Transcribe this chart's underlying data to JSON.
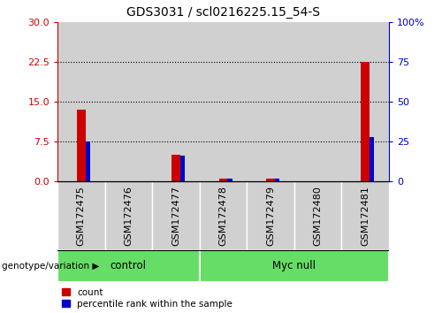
{
  "title": "GDS3031 / scl0216225.15_54-S",
  "samples": [
    "GSM172475",
    "GSM172476",
    "GSM172477",
    "GSM172478",
    "GSM172479",
    "GSM172480",
    "GSM172481"
  ],
  "red_values": [
    13.5,
    0.0,
    5.0,
    0.5,
    0.5,
    0.0,
    22.5
  ],
  "blue_values_pct": [
    25.0,
    0.0,
    16.0,
    2.0,
    2.0,
    0.0,
    28.0
  ],
  "ylim_left": [
    0,
    30
  ],
  "ylim_right": [
    0,
    100
  ],
  "yticks_left": [
    0,
    7.5,
    15,
    22.5,
    30
  ],
  "yticks_right": [
    0,
    25,
    50,
    75,
    100
  ],
  "ytick_labels_right": [
    "0",
    "25",
    "50",
    "75",
    "100%"
  ],
  "groups": [
    {
      "label": "control",
      "start": 0,
      "end": 3
    },
    {
      "label": "Myc null",
      "start": 3,
      "end": 7
    }
  ],
  "red_bar_width": 0.18,
  "blue_bar_width": 0.1,
  "red_color": "#cc0000",
  "blue_color": "#0000cc",
  "col_bg_color": "#d0d0d0",
  "group_color_light": "#b3f0b3",
  "group_color_dark": "#66dd66",
  "legend_labels": [
    "count",
    "percentile rank within the sample"
  ],
  "group_label": "genotype/variation",
  "title_fontsize": 10,
  "tick_fontsize": 8,
  "label_fontsize": 8,
  "group_fontsize": 8.5
}
